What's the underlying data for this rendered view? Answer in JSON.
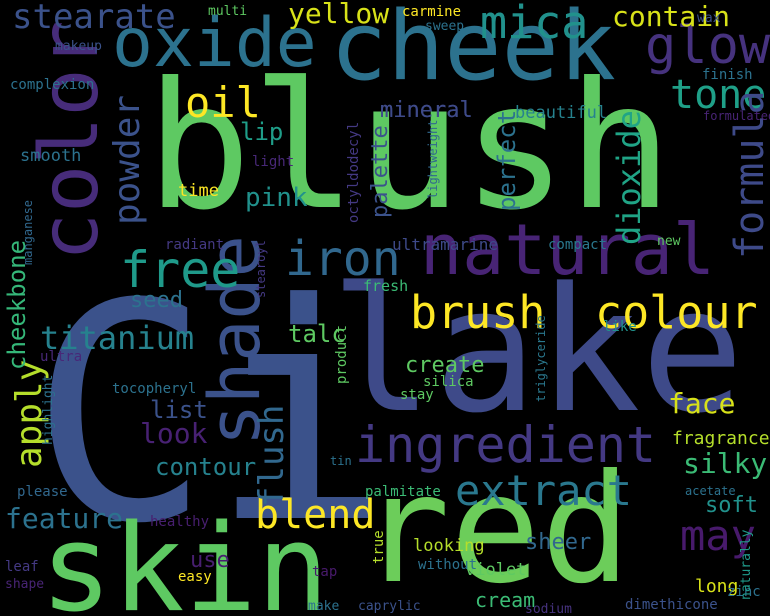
{
  "words": [
    {
      "text": "blush",
      "color": "#5ec962"
    },
    {
      "text": "Ci",
      "color": "#3b528b"
    },
    {
      "text": "lake",
      "color": "#3e4a89"
    },
    {
      "text": "red",
      "color": "#6ccd5a"
    },
    {
      "text": "skin",
      "color": "#5ec962"
    },
    {
      "text": "cheek",
      "color": "#2c728e"
    },
    {
      "text": "color",
      "color": "#472c7a"
    },
    {
      "text": "oxide",
      "color": "#2c728e"
    },
    {
      "text": "natural",
      "color": "#482475"
    },
    {
      "text": "shade",
      "color": "#3b528b"
    },
    {
      "text": "ingredient",
      "color": "#443983"
    },
    {
      "text": "iron",
      "color": "#31688e"
    },
    {
      "text": "free",
      "color": "#1f9a8a"
    },
    {
      "text": "brush",
      "color": "#fde725"
    },
    {
      "text": "colour",
      "color": "#fde725"
    },
    {
      "text": "blend",
      "color": "#fde725"
    },
    {
      "text": "mica",
      "color": "#21918c"
    },
    {
      "text": "glow",
      "color": "#46327e"
    },
    {
      "text": "oil",
      "color": "#fde725"
    },
    {
      "text": "stearate",
      "color": "#3b528b"
    },
    {
      "text": "tone",
      "color": "#1fa088"
    },
    {
      "text": "extract",
      "color": "#2a788e"
    },
    {
      "text": "may",
      "color": "#481a6c"
    },
    {
      "text": "formula",
      "color": "#3e4a89"
    },
    {
      "text": "powder",
      "color": "#3b528b"
    },
    {
      "text": "apply",
      "color": "#b5de2b"
    },
    {
      "text": "flush",
      "color": "#31688e"
    },
    {
      "text": "titanium",
      "color": "#26828e"
    },
    {
      "text": "dioxide",
      "color": "#20a486"
    },
    {
      "text": "yellow",
      "color": "#d8e219"
    },
    {
      "text": "contain",
      "color": "#d8e219"
    },
    {
      "text": "feature",
      "color": "#2c728e"
    },
    {
      "text": "silky",
      "color": "#3bbb75"
    },
    {
      "text": "look",
      "color": "#482173"
    },
    {
      "text": "face",
      "color": "#d8e219"
    },
    {
      "text": "contour",
      "color": "#26828e"
    },
    {
      "text": "cheekbone",
      "color": "#35b779"
    },
    {
      "text": "pink",
      "color": "#21918c"
    },
    {
      "text": "mineral",
      "color": "#3e4a89"
    },
    {
      "text": "palette",
      "color": "#3b528b"
    },
    {
      "text": "perfect",
      "color": "#2c728e"
    },
    {
      "text": "lip",
      "color": "#1f9e89"
    },
    {
      "text": "seed",
      "color": "#2c728e"
    },
    {
      "text": "talc",
      "color": "#5ec962"
    },
    {
      "text": "create",
      "color": "#5ec962"
    },
    {
      "text": "list",
      "color": "#3b528b"
    },
    {
      "text": "soft",
      "color": "#21918c"
    },
    {
      "text": "sheer",
      "color": "#31688e"
    },
    {
      "text": "fragrance",
      "color": "#b5de2b"
    },
    {
      "text": "use",
      "color": "#481f70"
    },
    {
      "text": "looking",
      "color": "#b5de2b"
    },
    {
      "text": "violet",
      "color": "#5ec962"
    },
    {
      "text": "cream",
      "color": "#3bbb75"
    },
    {
      "text": "long",
      "color": "#d8e219"
    },
    {
      "text": "zinc",
      "color": "#2c728e"
    },
    {
      "text": "mica",
      "color": "#21918c"
    },
    {
      "text": "time",
      "color": "#fde725"
    },
    {
      "text": "mineral",
      "color": "#3e4a89"
    },
    {
      "text": "smooth",
      "color": "#2c728e"
    },
    {
      "text": "light",
      "color": "#482878"
    },
    {
      "text": "ultramarine",
      "color": "#3e4a89"
    },
    {
      "text": "radiant",
      "color": "#443983"
    },
    {
      "text": "compact",
      "color": "#2a788e"
    },
    {
      "text": "new",
      "color": "#5ec962"
    },
    {
      "text": "beautiful",
      "color": "#26828e"
    },
    {
      "text": "finish",
      "color": "#2c728e"
    },
    {
      "text": "formulated",
      "color": "#482475"
    },
    {
      "text": "complexion",
      "color": "#2c728e"
    },
    {
      "text": "makeup",
      "color": "#3b528b"
    },
    {
      "text": "multi",
      "color": "#5ec962"
    },
    {
      "text": "carmine",
      "color": "#fde725"
    },
    {
      "text": "sweep",
      "color": "#2c728e"
    },
    {
      "text": "wax",
      "color": "#3b528b"
    },
    {
      "text": "octyldodecyl",
      "color": "#443983"
    },
    {
      "text": "lightweight",
      "color": "#31688e"
    },
    {
      "text": "manganese",
      "color": "#31688e"
    },
    {
      "text": "stearoyl",
      "color": "#443983"
    },
    {
      "text": "fresh",
      "color": "#3bbb75"
    },
    {
      "text": "like",
      "color": "#21918c"
    },
    {
      "text": "ultra",
      "color": "#482878"
    },
    {
      "text": "product",
      "color": "#5ec962"
    },
    {
      "text": "silica",
      "color": "#5ec962"
    },
    {
      "text": "stay",
      "color": "#5ec962"
    },
    {
      "text": "tocopheryl",
      "color": "#2c728e"
    },
    {
      "text": "highlight",
      "color": "#2c728e"
    },
    {
      "text": "triglyceride",
      "color": "#2a788e"
    },
    {
      "text": "tin",
      "color": "#2c728e"
    },
    {
      "text": "please",
      "color": "#31688e"
    },
    {
      "text": "healthy",
      "color": "#481f70"
    },
    {
      "text": "palmitate",
      "color": "#3bbb75"
    },
    {
      "text": "acetate",
      "color": "#2c728e"
    },
    {
      "text": "leaf",
      "color": "#443983"
    },
    {
      "text": "shape",
      "color": "#482475"
    },
    {
      "text": "easy",
      "color": "#fde725"
    },
    {
      "text": "tap",
      "color": "#481a6c"
    },
    {
      "text": "true",
      "color": "#b5de2b"
    },
    {
      "text": "without",
      "color": "#2c728e"
    },
    {
      "text": "naturally",
      "color": "#1f9a8a"
    },
    {
      "text": "make",
      "color": "#2c728e"
    },
    {
      "text": "caprylic",
      "color": "#3b528b"
    },
    {
      "text": "sodium",
      "color": "#46327e"
    },
    {
      "text": "dimethicone",
      "color": "#3b528b"
    }
  ]
}
